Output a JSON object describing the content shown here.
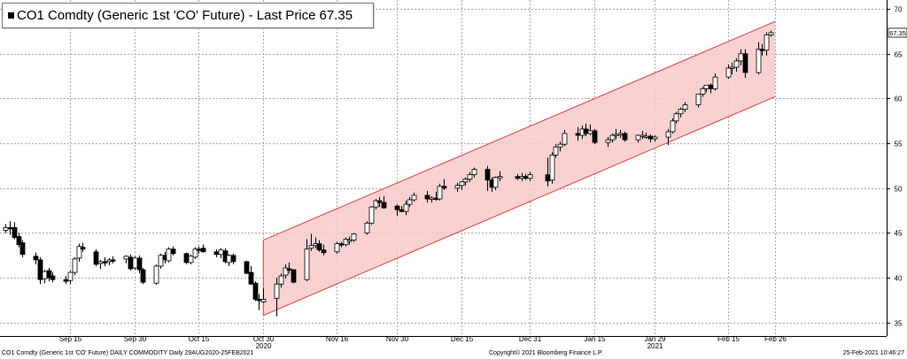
{
  "legend": {
    "title": "CO1 Comdty (Generic 1st 'CO' Future) - Last Price",
    "last_value": "67.35"
  },
  "footer": {
    "left": "CO1 Comdty (Generic 1st 'CO' Future) DAILY COMMODITY  Daily 29AUG2020-25FEB2021",
    "center": "Copyright© 2021 Bloomberg Finance L.P.",
    "right": "25-Feb-2021 10:46:27"
  },
  "colors": {
    "channel_fill": "#f9c9c9",
    "channel_line": "#e23c3c",
    "up_candle": "#ffffff",
    "down_candle": "#000000",
    "grid": "#aaaaaa",
    "last_tag": "#ffffff"
  },
  "chart_data": {
    "type": "candlestick",
    "title": "CO1 Comdty (Generic 1st 'CO' Future) - Last Price",
    "last_price": 67.35,
    "ylim": [
      33.5,
      71
    ],
    "y_ticks": [
      35,
      40,
      45,
      50,
      55,
      60,
      65,
      70
    ],
    "grid": true,
    "x_tick_labels": [
      "Sep 15",
      "Sep 30",
      "Oct 15",
      "Oct 30",
      "Nov 16",
      "Nov 30",
      "Dec 15",
      "Dec 31",
      "Jan 15",
      "Jan 29",
      "Feb 15",
      "Feb 26"
    ],
    "x_year_labels": [
      "2020",
      "2021"
    ],
    "candles": [
      {
        "date": "2020-08-31",
        "o": 45.3,
        "h": 46.0,
        "l": 45.0,
        "c": 45.6
      },
      {
        "date": "2020-09-01",
        "o": 45.6,
        "h": 46.3,
        "l": 44.8,
        "c": 45.5
      },
      {
        "date": "2020-09-02",
        "o": 45.6,
        "h": 46.2,
        "l": 44.3,
        "c": 44.5
      },
      {
        "date": "2020-09-03",
        "o": 44.6,
        "h": 45.0,
        "l": 43.4,
        "c": 43.7
      },
      {
        "date": "2020-09-04",
        "o": 43.9,
        "h": 44.2,
        "l": 42.3,
        "c": 42.6
      },
      {
        "date": "2020-09-07",
        "o": 42.4,
        "h": 42.8,
        "l": 41.5,
        "c": 42.0
      },
      {
        "date": "2020-09-08",
        "o": 42.0,
        "h": 42.3,
        "l": 39.3,
        "c": 39.8
      },
      {
        "date": "2020-09-09",
        "o": 39.9,
        "h": 40.9,
        "l": 39.4,
        "c": 40.7
      },
      {
        "date": "2020-09-10",
        "o": 40.8,
        "h": 41.1,
        "l": 39.6,
        "c": 40.0
      },
      {
        "date": "2020-09-11",
        "o": 40.2,
        "h": 40.6,
        "l": 39.5,
        "c": 39.8
      },
      {
        "date": "2020-09-14",
        "o": 39.8,
        "h": 40.2,
        "l": 39.3,
        "c": 39.6
      },
      {
        "date": "2020-09-15",
        "o": 39.7,
        "h": 40.8,
        "l": 39.3,
        "c": 40.6
      },
      {
        "date": "2020-09-16",
        "o": 40.6,
        "h": 42.3,
        "l": 40.3,
        "c": 42.1
      },
      {
        "date": "2020-09-17",
        "o": 42.2,
        "h": 43.8,
        "l": 41.8,
        "c": 43.5
      },
      {
        "date": "2020-09-18",
        "o": 43.4,
        "h": 43.9,
        "l": 42.9,
        "c": 43.2
      },
      {
        "date": "2020-09-21",
        "o": 42.9,
        "h": 43.2,
        "l": 41.3,
        "c": 41.5
      },
      {
        "date": "2020-09-22",
        "o": 41.6,
        "h": 42.0,
        "l": 41.0,
        "c": 41.8
      },
      {
        "date": "2020-09-23",
        "o": 41.8,
        "h": 42.3,
        "l": 41.3,
        "c": 41.7
      },
      {
        "date": "2020-09-24",
        "o": 41.8,
        "h": 42.2,
        "l": 41.4,
        "c": 42.0
      },
      {
        "date": "2020-09-25",
        "o": 42.0,
        "h": 42.4,
        "l": 41.6,
        "c": 41.9
      },
      {
        "date": "2020-09-28",
        "o": 42.1,
        "h": 42.5,
        "l": 41.6,
        "c": 42.4
      },
      {
        "date": "2020-09-29",
        "o": 42.3,
        "h": 42.6,
        "l": 40.8,
        "c": 41.0
      },
      {
        "date": "2020-09-30",
        "o": 41.1,
        "h": 42.4,
        "l": 40.9,
        "c": 42.2
      },
      {
        "date": "2020-10-01",
        "o": 42.2,
        "h": 42.5,
        "l": 40.5,
        "c": 40.9
      },
      {
        "date": "2020-10-02",
        "o": 40.9,
        "h": 41.1,
        "l": 39.3,
        "c": 39.5
      },
      {
        "date": "2020-10-05",
        "o": 39.4,
        "h": 41.5,
        "l": 39.2,
        "c": 41.3
      },
      {
        "date": "2020-10-06",
        "o": 41.3,
        "h": 42.7,
        "l": 41.0,
        "c": 42.5
      },
      {
        "date": "2020-10-07",
        "o": 42.5,
        "h": 42.9,
        "l": 41.6,
        "c": 42.0
      },
      {
        "date": "2020-10-08",
        "o": 41.9,
        "h": 43.4,
        "l": 41.7,
        "c": 43.2
      },
      {
        "date": "2020-10-09",
        "o": 43.2,
        "h": 43.5,
        "l": 42.5,
        "c": 42.7
      },
      {
        "date": "2020-10-12",
        "o": 42.7,
        "h": 42.8,
        "l": 41.5,
        "c": 41.7
      },
      {
        "date": "2020-10-13",
        "o": 41.7,
        "h": 42.6,
        "l": 41.5,
        "c": 42.4
      },
      {
        "date": "2020-10-14",
        "o": 42.3,
        "h": 43.4,
        "l": 42.1,
        "c": 43.2
      },
      {
        "date": "2020-10-15",
        "o": 43.2,
        "h": 43.5,
        "l": 42.7,
        "c": 43.1
      },
      {
        "date": "2020-10-16",
        "o": 43.3,
        "h": 43.7,
        "l": 42.8,
        "c": 42.9
      },
      {
        "date": "2020-10-19",
        "o": 42.9,
        "h": 43.2,
        "l": 42.3,
        "c": 42.6
      },
      {
        "date": "2020-10-20",
        "o": 42.6,
        "h": 43.3,
        "l": 42.2,
        "c": 43.1
      },
      {
        "date": "2020-10-21",
        "o": 43.0,
        "h": 43.3,
        "l": 41.6,
        "c": 41.8
      },
      {
        "date": "2020-10-22",
        "o": 41.7,
        "h": 42.6,
        "l": 41.3,
        "c": 42.5
      },
      {
        "date": "2020-10-23",
        "o": 42.5,
        "h": 42.7,
        "l": 41.5,
        "c": 41.8
      },
      {
        "date": "2020-10-26",
        "o": 41.8,
        "h": 41.9,
        "l": 40.4,
        "c": 40.5
      },
      {
        "date": "2020-10-27",
        "o": 40.6,
        "h": 41.3,
        "l": 39.2,
        "c": 39.3
      },
      {
        "date": "2020-10-28",
        "o": 39.4,
        "h": 39.6,
        "l": 37.4,
        "c": 37.6
      },
      {
        "date": "2020-10-29",
        "o": 37.6,
        "h": 38.2,
        "l": 36.4,
        "c": 37.5
      },
      {
        "date": "2020-10-30",
        "o": 37.3,
        "h": 38.8,
        "l": 37.2,
        "c": 37.6
      },
      {
        "date": "2020-11-02",
        "o": 37.7,
        "h": 40.0,
        "l": 35.7,
        "c": 39.3
      },
      {
        "date": "2020-11-03",
        "o": 39.3,
        "h": 40.5,
        "l": 38.9,
        "c": 40.2
      },
      {
        "date": "2020-11-04",
        "o": 40.3,
        "h": 41.5,
        "l": 39.9,
        "c": 41.1
      },
      {
        "date": "2020-11-05",
        "o": 41.0,
        "h": 41.7,
        "l": 40.5,
        "c": 40.9
      },
      {
        "date": "2020-11-06",
        "o": 40.9,
        "h": 40.9,
        "l": 39.4,
        "c": 39.5
      },
      {
        "date": "2020-11-09",
        "o": 39.8,
        "h": 44.3,
        "l": 39.6,
        "c": 43.2
      },
      {
        "date": "2020-11-10",
        "o": 43.3,
        "h": 44.9,
        "l": 43.0,
        "c": 43.6
      },
      {
        "date": "2020-11-11",
        "o": 43.6,
        "h": 44.5,
        "l": 43.3,
        "c": 43.8
      },
      {
        "date": "2020-11-12",
        "o": 43.8,
        "h": 44.2,
        "l": 42.9,
        "c": 43.1
      },
      {
        "date": "2020-11-13",
        "o": 43.1,
        "h": 43.7,
        "l": 42.5,
        "c": 42.8
      },
      {
        "date": "2020-11-16",
        "o": 42.9,
        "h": 44.0,
        "l": 42.7,
        "c": 43.8
      },
      {
        "date": "2020-11-17",
        "o": 43.8,
        "h": 44.0,
        "l": 43.4,
        "c": 43.7
      },
      {
        "date": "2020-11-18",
        "o": 43.7,
        "h": 44.5,
        "l": 43.5,
        "c": 44.3
      },
      {
        "date": "2020-11-19",
        "o": 44.2,
        "h": 44.6,
        "l": 43.7,
        "c": 44.2
      },
      {
        "date": "2020-11-20",
        "o": 44.2,
        "h": 45.0,
        "l": 44.0,
        "c": 44.9
      },
      {
        "date": "2020-11-23",
        "o": 45.0,
        "h": 46.3,
        "l": 44.8,
        "c": 46.1
      },
      {
        "date": "2020-11-24",
        "o": 46.1,
        "h": 48.0,
        "l": 45.9,
        "c": 47.9
      },
      {
        "date": "2020-11-25",
        "o": 47.9,
        "h": 48.8,
        "l": 47.6,
        "c": 48.6
      },
      {
        "date": "2020-11-26",
        "o": 48.6,
        "h": 49.0,
        "l": 47.9,
        "c": 48.4
      },
      {
        "date": "2020-11-27",
        "o": 48.4,
        "h": 49.1,
        "l": 47.7,
        "c": 47.8
      },
      {
        "date": "2020-11-30",
        "o": 48.0,
        "h": 48.2,
        "l": 46.9,
        "c": 47.6
      },
      {
        "date": "2020-12-01",
        "o": 47.6,
        "h": 48.0,
        "l": 47.3,
        "c": 47.4
      },
      {
        "date": "2020-12-02",
        "o": 47.4,
        "h": 48.6,
        "l": 47.0,
        "c": 48.2
      },
      {
        "date": "2020-12-03",
        "o": 48.2,
        "h": 49.0,
        "l": 47.9,
        "c": 48.7
      },
      {
        "date": "2020-12-04",
        "o": 48.7,
        "h": 49.5,
        "l": 48.5,
        "c": 49.2
      },
      {
        "date": "2020-12-07",
        "o": 49.2,
        "h": 49.7,
        "l": 48.4,
        "c": 48.8
      },
      {
        "date": "2020-12-08",
        "o": 48.8,
        "h": 49.1,
        "l": 48.4,
        "c": 48.9
      },
      {
        "date": "2020-12-09",
        "o": 48.9,
        "h": 49.6,
        "l": 48.6,
        "c": 48.8
      },
      {
        "date": "2020-12-10",
        "o": 48.8,
        "h": 50.5,
        "l": 48.6,
        "c": 50.2
      },
      {
        "date": "2020-12-11",
        "o": 50.2,
        "h": 51.0,
        "l": 49.8,
        "c": 50.0
      },
      {
        "date": "2020-12-14",
        "o": 50.0,
        "h": 50.6,
        "l": 49.6,
        "c": 50.3
      },
      {
        "date": "2020-12-15",
        "o": 50.3,
        "h": 50.8,
        "l": 49.8,
        "c": 50.7
      },
      {
        "date": "2020-12-16",
        "o": 50.7,
        "h": 51.2,
        "l": 50.3,
        "c": 51.0
      },
      {
        "date": "2020-12-17",
        "o": 51.0,
        "h": 51.8,
        "l": 50.7,
        "c": 51.5
      },
      {
        "date": "2020-12-18",
        "o": 51.5,
        "h": 52.3,
        "l": 51.2,
        "c": 52.1
      },
      {
        "date": "2020-12-21",
        "o": 52.1,
        "h": 52.5,
        "l": 49.7,
        "c": 50.9
      },
      {
        "date": "2020-12-22",
        "o": 50.9,
        "h": 51.2,
        "l": 49.6,
        "c": 50.1
      },
      {
        "date": "2020-12-23",
        "o": 50.1,
        "h": 51.3,
        "l": 49.8,
        "c": 51.2
      },
      {
        "date": "2020-12-24",
        "o": 51.2,
        "h": 51.9,
        "l": 50.8,
        "c": 51.3
      },
      {
        "date": "2020-12-28",
        "o": 51.3,
        "h": 51.6,
        "l": 50.9,
        "c": 51.1
      },
      {
        "date": "2020-12-29",
        "o": 51.1,
        "h": 51.7,
        "l": 50.8,
        "c": 51.3
      },
      {
        "date": "2020-12-30",
        "o": 51.3,
        "h": 51.6,
        "l": 50.9,
        "c": 51.1
      },
      {
        "date": "2020-12-31",
        "o": 51.1,
        "h": 51.8,
        "l": 50.8,
        "c": 51.5
      },
      {
        "date": "2021-01-04",
        "o": 51.5,
        "h": 53.4,
        "l": 50.2,
        "c": 50.8
      },
      {
        "date": "2021-01-05",
        "o": 50.9,
        "h": 54.0,
        "l": 50.5,
        "c": 53.7
      },
      {
        "date": "2021-01-06",
        "o": 53.7,
        "h": 54.9,
        "l": 53.4,
        "c": 54.6
      },
      {
        "date": "2021-01-07",
        "o": 54.6,
        "h": 55.2,
        "l": 54.1,
        "c": 54.9
      },
      {
        "date": "2021-01-08",
        "o": 54.9,
        "h": 56.5,
        "l": 54.7,
        "c": 56.1
      },
      {
        "date": "2021-01-11",
        "o": 56.1,
        "h": 56.8,
        "l": 55.3,
        "c": 55.9
      },
      {
        "date": "2021-01-12",
        "o": 55.9,
        "h": 57.0,
        "l": 55.5,
        "c": 56.6
      },
      {
        "date": "2021-01-13",
        "o": 56.6,
        "h": 57.2,
        "l": 55.8,
        "c": 56.1
      },
      {
        "date": "2021-01-14",
        "o": 56.1,
        "h": 57.1,
        "l": 55.9,
        "c": 56.4
      },
      {
        "date": "2021-01-15",
        "o": 56.4,
        "h": 56.6,
        "l": 54.9,
        "c": 55.1
      },
      {
        "date": "2021-01-18",
        "o": 55.1,
        "h": 55.7,
        "l": 54.6,
        "c": 55.4
      },
      {
        "date": "2021-01-19",
        "o": 55.4,
        "h": 56.1,
        "l": 55.1,
        "c": 55.9
      },
      {
        "date": "2021-01-20",
        "o": 55.9,
        "h": 56.6,
        "l": 55.5,
        "c": 56.0
      },
      {
        "date": "2021-01-21",
        "o": 56.0,
        "h": 56.5,
        "l": 55.6,
        "c": 56.1
      },
      {
        "date": "2021-01-22",
        "o": 56.1,
        "h": 56.3,
        "l": 55.2,
        "c": 55.4
      },
      {
        "date": "2021-01-25",
        "o": 55.4,
        "h": 56.0,
        "l": 55.1,
        "c": 55.9
      },
      {
        "date": "2021-01-26",
        "o": 55.9,
        "h": 56.4,
        "l": 55.5,
        "c": 55.9
      },
      {
        "date": "2021-01-27",
        "o": 55.8,
        "h": 56.2,
        "l": 55.5,
        "c": 55.8
      },
      {
        "date": "2021-01-28",
        "o": 55.8,
        "h": 56.0,
        "l": 55.1,
        "c": 55.5
      },
      {
        "date": "2021-01-29",
        "o": 55.5,
        "h": 55.9,
        "l": 55.2,
        "c": 55.7
      },
      {
        "date": "2021-02-01",
        "o": 55.7,
        "h": 56.6,
        "l": 54.8,
        "c": 56.3
      },
      {
        "date": "2021-02-02",
        "o": 56.3,
        "h": 57.8,
        "l": 56.1,
        "c": 57.5
      },
      {
        "date": "2021-02-03",
        "o": 57.5,
        "h": 58.5,
        "l": 57.2,
        "c": 58.3
      },
      {
        "date": "2021-02-04",
        "o": 58.3,
        "h": 59.0,
        "l": 57.9,
        "c": 58.8
      },
      {
        "date": "2021-02-05",
        "o": 58.8,
        "h": 59.6,
        "l": 58.5,
        "c": 59.3
      },
      {
        "date": "2021-02-08",
        "o": 59.3,
        "h": 60.5,
        "l": 59.0,
        "c": 60.5
      },
      {
        "date": "2021-02-09",
        "o": 60.5,
        "h": 61.3,
        "l": 60.2,
        "c": 61.1
      },
      {
        "date": "2021-02-10",
        "o": 61.1,
        "h": 61.5,
        "l": 60.7,
        "c": 61.5
      },
      {
        "date": "2021-02-11",
        "o": 61.5,
        "h": 61.7,
        "l": 60.6,
        "c": 61.1
      },
      {
        "date": "2021-02-12",
        "o": 61.1,
        "h": 62.8,
        "l": 60.9,
        "c": 62.4
      },
      {
        "date": "2021-02-15",
        "o": 62.4,
        "h": 63.8,
        "l": 62.2,
        "c": 63.4
      },
      {
        "date": "2021-02-16",
        "o": 63.4,
        "h": 64.0,
        "l": 62.7,
        "c": 63.5
      },
      {
        "date": "2021-02-17",
        "o": 63.5,
        "h": 64.5,
        "l": 63.0,
        "c": 64.2
      },
      {
        "date": "2021-02-18",
        "o": 64.2,
        "h": 65.5,
        "l": 63.7,
        "c": 65.0
      },
      {
        "date": "2021-02-19",
        "o": 65.0,
        "h": 65.5,
        "l": 62.3,
        "c": 62.9
      },
      {
        "date": "2021-02-22",
        "o": 62.9,
        "h": 66.3,
        "l": 62.7,
        "c": 65.5
      },
      {
        "date": "2021-02-23",
        "o": 65.5,
        "h": 66.1,
        "l": 64.8,
        "c": 65.4
      },
      {
        "date": "2021-02-24",
        "o": 65.4,
        "h": 67.4,
        "l": 64.8,
        "c": 67.1
      },
      {
        "date": "2021-02-25",
        "o": 67.1,
        "h": 67.6,
        "l": 66.9,
        "c": 67.35
      }
    ],
    "channel": {
      "start_date": "2020-10-30",
      "end_date": "2021-02-26",
      "upper": [
        44.2,
        68.6
      ],
      "lower": [
        35.8,
        60.2
      ]
    }
  }
}
